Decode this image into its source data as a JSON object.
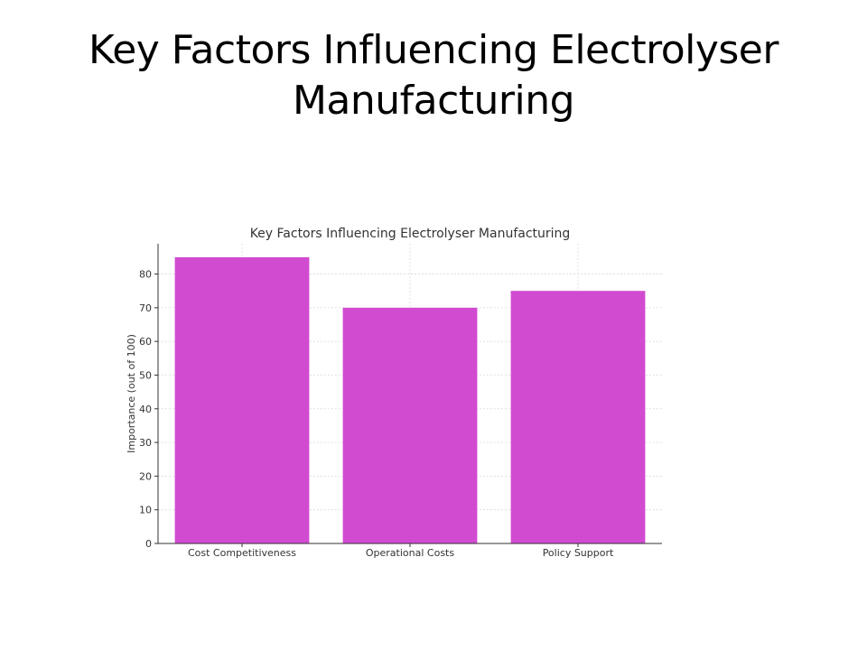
{
  "slide": {
    "title": "Key Factors Influencing Electrolyser Manufacturing"
  },
  "chart_data": {
    "type": "bar",
    "title": "Key Factors Influencing Electrolyser Manufacturing",
    "xlabel": "",
    "ylabel": "Importance (out of 100)",
    "categories": [
      "Cost Competitiveness",
      "Operational Costs",
      "Policy Support"
    ],
    "values": [
      85,
      70,
      75
    ],
    "ylim": [
      0,
      89
    ],
    "yticks": [
      0,
      10,
      20,
      30,
      40,
      50,
      60,
      70,
      80
    ],
    "grid": true,
    "bar_color": "#d14bd1"
  }
}
